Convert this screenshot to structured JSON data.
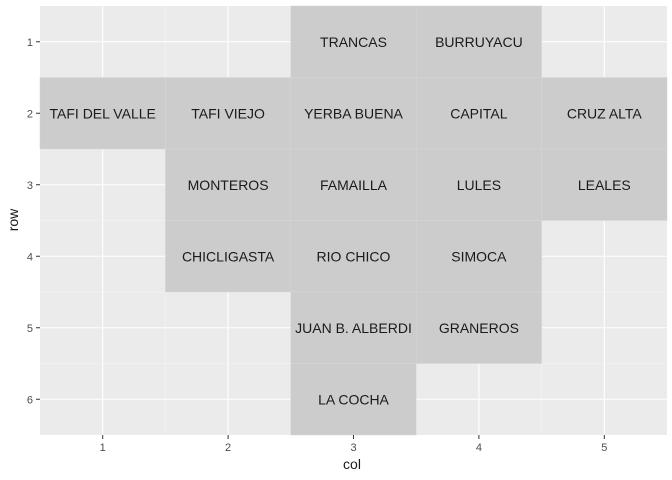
{
  "chart_data": {
    "type": "heatmap",
    "xlabel": "col",
    "ylabel": "row",
    "x_ticks": [
      1,
      2,
      3,
      4,
      5
    ],
    "y_ticks": [
      1,
      2,
      3,
      4,
      5,
      6
    ],
    "xlim": [
      0.5,
      5.5
    ],
    "ylim": [
      0.5,
      6.5
    ],
    "y_reversed": true,
    "grid": true,
    "tile_color": "#cccccc",
    "panel_color": "#ebebeb",
    "tiles": [
      {
        "name": "TRANCAS",
        "col": 3,
        "row": 1
      },
      {
        "name": "BURRUYACU",
        "col": 4,
        "row": 1
      },
      {
        "name": "TAFI DEL VALLE",
        "col": 1,
        "row": 2
      },
      {
        "name": "TAFI VIEJO",
        "col": 2,
        "row": 2
      },
      {
        "name": "YERBA BUENA",
        "col": 3,
        "row": 2
      },
      {
        "name": "CAPITAL",
        "col": 4,
        "row": 2
      },
      {
        "name": "CRUZ ALTA",
        "col": 5,
        "row": 2
      },
      {
        "name": "MONTEROS",
        "col": 2,
        "row": 3
      },
      {
        "name": "FAMAILLA",
        "col": 3,
        "row": 3
      },
      {
        "name": "LULES",
        "col": 4,
        "row": 3
      },
      {
        "name": "LEALES",
        "col": 5,
        "row": 3
      },
      {
        "name": "CHICLIGASTA",
        "col": 2,
        "row": 4
      },
      {
        "name": "RIO CHICO",
        "col": 3,
        "row": 4
      },
      {
        "name": "SIMOCA",
        "col": 4,
        "row": 4
      },
      {
        "name": "JUAN B. ALBERDI",
        "col": 3,
        "row": 5
      },
      {
        "name": "GRANEROS",
        "col": 4,
        "row": 5
      },
      {
        "name": "LA COCHA",
        "col": 3,
        "row": 6
      }
    ]
  }
}
